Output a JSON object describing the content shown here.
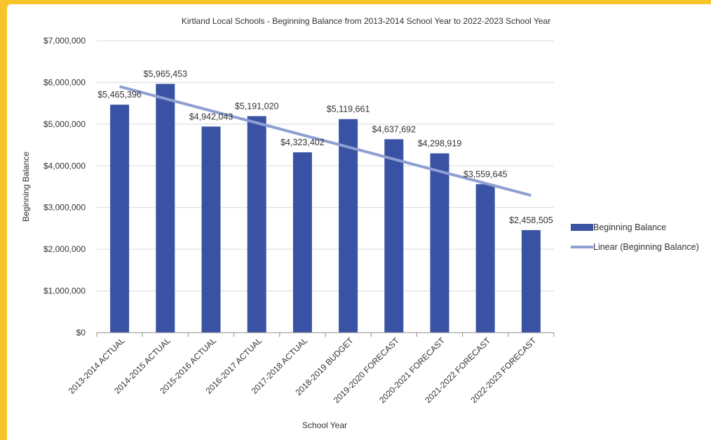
{
  "chart_data": {
    "type": "bar",
    "title": "Kirtland Local Schools - Beginning Balance from 2013-2014 School Year to 2022-2023 School Year",
    "xlabel": "School Year",
    "ylabel": "Beginning Balance",
    "ylim": [
      0,
      7000000
    ],
    "yticks": [
      0,
      1000000,
      2000000,
      3000000,
      4000000,
      5000000,
      6000000,
      7000000
    ],
    "ytick_labels": [
      "$0",
      "$1,000,000",
      "$2,000,000",
      "$3,000,000",
      "$4,000,000",
      "$5,000,000",
      "$6,000,000",
      "$7,000,000"
    ],
    "grid": true,
    "legend_position": "right",
    "categories": [
      "2013-2014 ACTUAL",
      "2014-2015 ACTUAL",
      "2015-2016 ACTUAL",
      "2016-2017 ACTUAL",
      "2017-2018 ACTUAL",
      "2018-2019 BUDGET",
      "2019-2020 FORECAST",
      "2020-2021 FORECAST",
      "2021-2022 FORECAST",
      "2022-2023 FORECAST"
    ],
    "series": [
      {
        "name": "Beginning Balance",
        "color": "#3a52a4",
        "values": [
          5465396,
          5965453,
          4942043,
          5191020,
          4323402,
          5119661,
          4637692,
          4298919,
          3559645,
          2458505
        ],
        "data_labels": [
          "$5,465,396",
          "$5,965,453",
          "$4,942,043",
          "$5,191,020",
          "$4,323,402",
          "$5,119,661",
          "$4,637,692",
          "$4,298,919",
          "$3,559,645",
          "$2,458,505"
        ]
      }
    ],
    "trendline": {
      "name": "Linear (Beginning Balance)",
      "type": "linear",
      "color": "#8e9fd2",
      "start_value": 5900000,
      "end_value": 3290000
    }
  }
}
